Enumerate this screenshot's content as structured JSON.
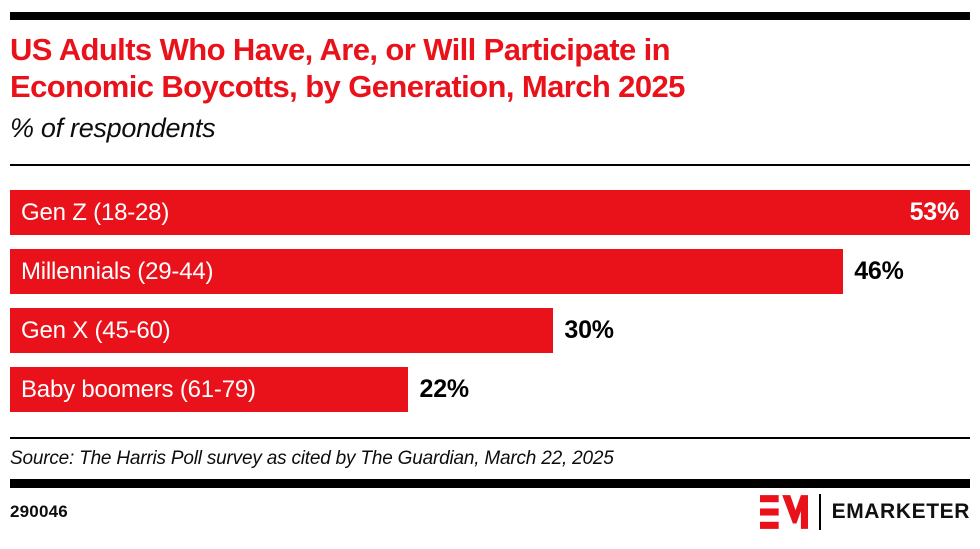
{
  "header": {
    "title": "US Adults Who Have, Are, or Will Participate in Economic Boycotts, by Generation, March 2025",
    "title_lines": [
      "US Adults Who Have, Are, or Will Participate in",
      "Economic Boycotts, by Generation, March 2025"
    ],
    "subtitle": "% of respondents"
  },
  "chart_data": {
    "type": "bar",
    "orientation": "horizontal",
    "title": "US Adults Who Have, Are, or Will Participate in Economic Boycotts, by Generation, March 2025",
    "subtitle": "% of respondents",
    "categories": [
      "Gen Z (18-28)",
      "Millennials (29-44)",
      "Gen X (45-60)",
      "Baby boomers (61-79)"
    ],
    "values": [
      53,
      46,
      30,
      22
    ],
    "value_labels": [
      "53%",
      "46%",
      "30%",
      "22%"
    ],
    "xlim": [
      0,
      53
    ],
    "grid": false,
    "legend": false,
    "bar_color": "#E9121B",
    "category_label_color": "#FFFFFF",
    "value_label_color_outside": "#000000",
    "value_label_color_inside": "#FFFFFF"
  },
  "footer": {
    "source": "Source: The Harris Poll survey as cited by The Guardian, March 22, 2025",
    "chart_id": "290046",
    "brand_wordmark": "EMARKETER"
  },
  "colors": {
    "accent_red": "#E9121B",
    "bar_black": "#000000",
    "background": "#FFFFFF"
  }
}
